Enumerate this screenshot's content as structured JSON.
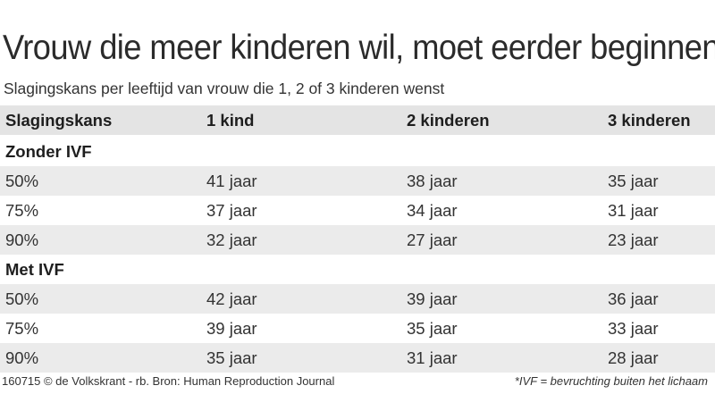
{
  "title": "Vrouw die meer kinderen wil, moet eerder beginnen",
  "subtitle": "Slagingskans per leeftijd van vrouw die 1, 2 of 3 kinderen wenst",
  "table": {
    "headers": [
      "Slagingskans",
      "1 kind",
      "2 kinderen",
      "3 kinderen"
    ],
    "groups": [
      {
        "label": "Zonder IVF",
        "rows": [
          [
            "50%",
            "41 jaar",
            "38 jaar",
            "35 jaar"
          ],
          [
            "75%",
            "37 jaar",
            "34 jaar",
            "31 jaar"
          ],
          [
            "90%",
            "32 jaar",
            "27 jaar",
            "23 jaar"
          ]
        ]
      },
      {
        "label": "Met IVF",
        "rows": [
          [
            "50%",
            "42 jaar",
            "39 jaar",
            "36 jaar"
          ],
          [
            "75%",
            "39 jaar",
            "35 jaar",
            "33 jaar"
          ],
          [
            "90%",
            "35 jaar",
            "31 jaar",
            "28 jaar"
          ]
        ]
      }
    ]
  },
  "footer": {
    "credit": "160715 © de Volkskrant - rb. Bron: Human Reproduction Journal",
    "note": "*IVF = bevruchting buiten het lichaam"
  },
  "colors": {
    "header_bg": "#e4e4e4",
    "shaded_row_bg": "#ebebeb",
    "background": "#ffffff"
  }
}
